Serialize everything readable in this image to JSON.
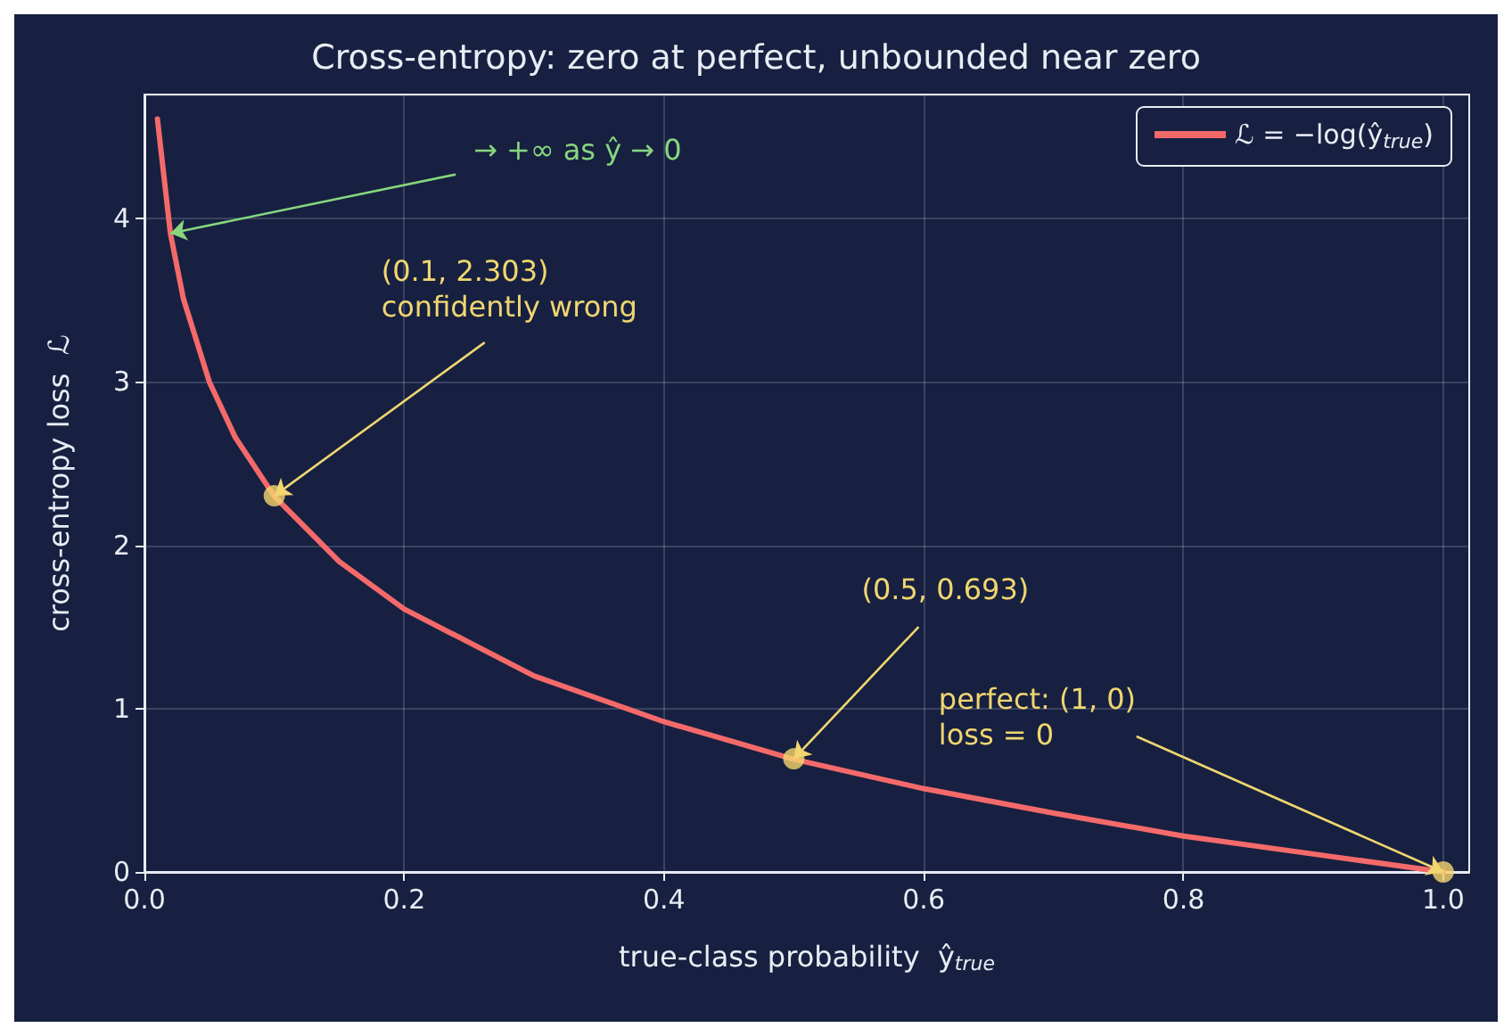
{
  "chart_data": {
    "type": "line",
    "title": "Cross-entropy: zero at perfect, unbounded near zero",
    "xlabel": "true-class probability  ŷ$_{true}$",
    "ylabel": "cross-entropy loss  ℒ",
    "xlim": [
      0,
      1.02
    ],
    "ylim": [
      0,
      4.76
    ],
    "xticks": [
      {
        "value": 0,
        "label": "0.0"
      },
      {
        "value": 0.2,
        "label": "0.2"
      },
      {
        "value": 0.4,
        "label": "0.4"
      },
      {
        "value": 0.6,
        "label": "0.6"
      },
      {
        "value": 0.8,
        "label": "0.8"
      },
      {
        "value": 1,
        "label": "1.0"
      }
    ],
    "yticks": [
      0,
      1,
      2,
      3,
      4
    ],
    "grid": true,
    "legend": "top right",
    "series": [
      {
        "name": "ℒ = −log(ŷ$_{true}$)",
        "color": "#f46a6a",
        "type": "line",
        "marker": "none",
        "line_style": "solid",
        "x": [
          0.01,
          0.02,
          0.03,
          0.05,
          0.07,
          0.1,
          0.15,
          0.2,
          0.3,
          0.4,
          0.5,
          0.6,
          0.7,
          0.8,
          0.9,
          1.0
        ],
        "values": [
          4.61,
          3.91,
          3.51,
          3.0,
          2.66,
          2.3,
          1.9,
          1.61,
          1.2,
          0.92,
          0.69,
          0.51,
          0.36,
          0.22,
          0.11,
          0
        ]
      },
      {
        "color": "#f5d66e",
        "type": "scatter",
        "marker": "circle",
        "x": [
          0.1,
          0.5,
          1.0
        ],
        "values": [
          2.303,
          0.693,
          0
        ]
      }
    ],
    "annotations": [
      {
        "text": "→ +∞ as ŷ → 0",
        "x": 0.02,
        "y": 3.91
      },
      {
        "text": "(0.1, 2.303)\nconfidently wrong",
        "x": 0.1,
        "y": 2.303
      },
      {
        "text": "(0.5, 0.693)",
        "x": 0.5,
        "y": 0.693
      },
      {
        "text": "perfect: (1, 0)\nloss = 0",
        "x": 1,
        "y": 0
      }
    ]
  }
}
